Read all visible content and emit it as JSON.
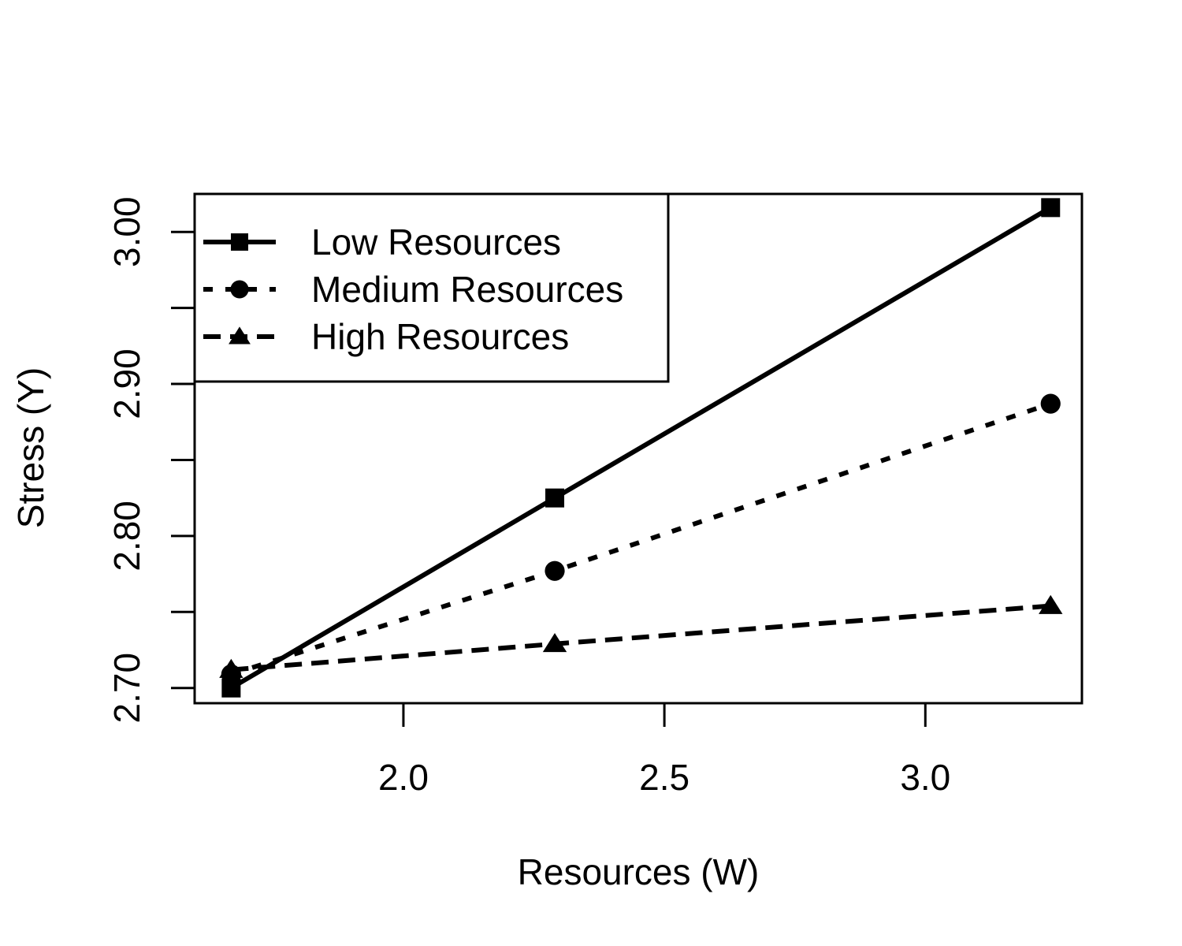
{
  "chart_data": {
    "type": "line",
    "title": "",
    "xlabel": "Resources (W)",
    "ylabel": "Stress (Y)",
    "xlim": [
      1.6,
      3.3
    ],
    "ylim": [
      2.69,
      3.025
    ],
    "x_ticks": [
      {
        "value": 2.0,
        "label": "2.0"
      },
      {
        "value": 2.5,
        "label": "2.5"
      },
      {
        "value": 3.0,
        "label": "3.0"
      }
    ],
    "y_ticks": [
      {
        "value": 2.7,
        "label": "2.70"
      },
      {
        "value": 2.75,
        "label": ""
      },
      {
        "value": 2.8,
        "label": "2.80"
      },
      {
        "value": 2.85,
        "label": ""
      },
      {
        "value": 2.9,
        "label": "2.90"
      },
      {
        "value": 2.95,
        "label": ""
      },
      {
        "value": 3.0,
        "label": "3.00"
      }
    ],
    "grid": false,
    "legend_position": "top-left",
    "series": [
      {
        "name": "Low Resources",
        "marker": "square",
        "line_style": "solid",
        "x": [
          1.67,
          2.29,
          3.24
        ],
        "y": [
          2.7,
          2.825,
          3.016
        ]
      },
      {
        "name": "Medium Resources",
        "marker": "circle",
        "line_style": "dotted",
        "x": [
          1.67,
          2.29,
          3.24
        ],
        "y": [
          2.709,
          2.777,
          2.887
        ]
      },
      {
        "name": "High Resources",
        "marker": "triangle",
        "line_style": "dashed",
        "x": [
          1.67,
          2.29,
          3.24
        ],
        "y": [
          2.712,
          2.729,
          2.754
        ]
      }
    ],
    "colors": {
      "ink": "#000000",
      "background": "#ffffff"
    }
  }
}
